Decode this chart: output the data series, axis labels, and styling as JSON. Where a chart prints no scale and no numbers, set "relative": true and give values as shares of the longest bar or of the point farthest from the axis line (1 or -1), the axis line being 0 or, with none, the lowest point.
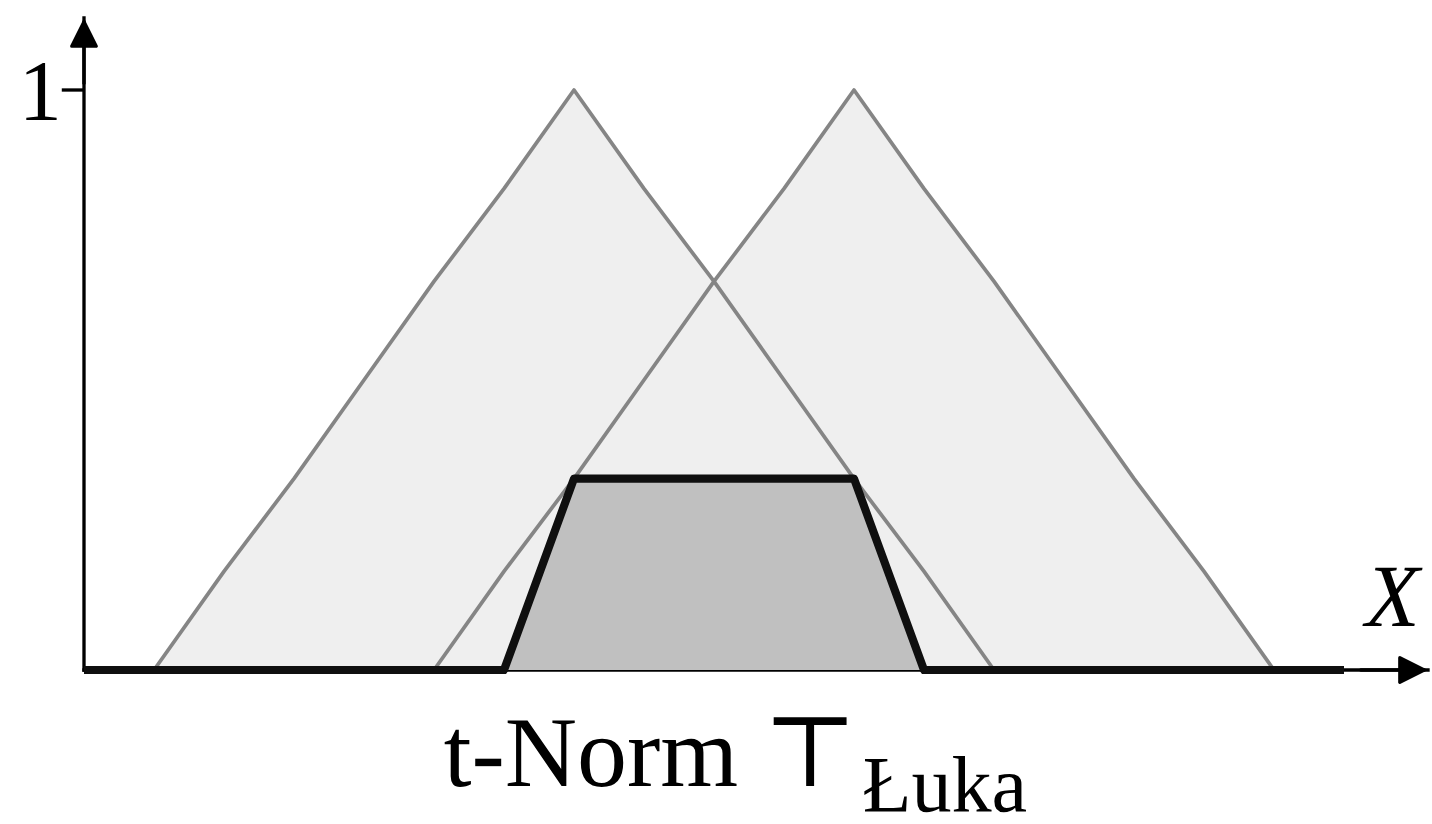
{
  "chart_data": {
    "type": "area",
    "title": "t-Norm ⊤$_{Łuka}$",
    "xlabel": "X",
    "relative": true,
    "categories": [
      null,
      null,
      null,
      null,
      null,
      null,
      null,
      null,
      null,
      null,
      null,
      null,
      null,
      null,
      null,
      null,
      null,
      null,
      null
    ],
    "series": [
      {
        "color": "#efefef",
        "values": [
          null,
          0,
          0.17,
          0.33,
          0.5,
          0.67,
          0.83,
          1,
          0.83,
          0.67,
          0.5,
          0.33,
          0.17,
          0,
          null,
          null,
          null,
          null,
          null
        ]
      },
      {
        "color": "#efefef",
        "values": [
          null,
          null,
          null,
          null,
          null,
          0,
          0.17,
          0.33,
          0.5,
          0.67,
          0.83,
          1,
          0.83,
          0.67,
          0.5,
          0.33,
          0.17,
          0,
          null
        ]
      },
      {
        "color": "#c0c0c0",
        "values": [
          0,
          0,
          0,
          0,
          0,
          0,
          0,
          0.33,
          0.33,
          0.33,
          0.33,
          0.33,
          0,
          0,
          0,
          0,
          0,
          0,
          0
        ]
      }
    ],
    "annotations": [
      "1"
    ]
  }
}
